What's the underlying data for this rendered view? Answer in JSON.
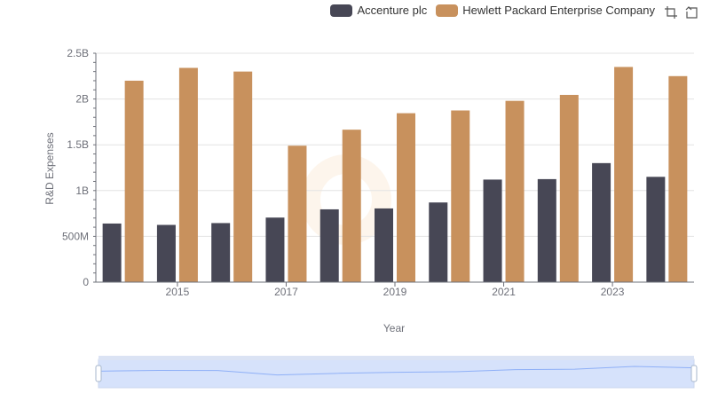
{
  "colors": {
    "accenture": "#474755",
    "hpe": "#c8915d",
    "grid": "#e3e3e3",
    "axis_text": "#6e7079",
    "slider_fill": "#d6e2fb",
    "slider_border": "#c9d5ec",
    "slider_line": "#8fb0f7"
  },
  "legend": {
    "items": [
      {
        "label": "Accenture plc",
        "color": "#474755"
      },
      {
        "label": "Hewlett Packard Enterprise Company",
        "color": "#c8915d"
      }
    ]
  },
  "toolbox": {
    "icons": [
      "zoom-icon",
      "restore-icon"
    ]
  },
  "chart_data": {
    "type": "bar",
    "title": "",
    "xlabel": "Year",
    "ylabel": "R&D Expenses",
    "categories": [
      "2014",
      "2015",
      "2016",
      "2017",
      "2018",
      "2019",
      "2020",
      "2021",
      "2022",
      "2023",
      "2024"
    ],
    "x_tick_labels": [
      "2015",
      "2017",
      "2019",
      "2021",
      "2023"
    ],
    "y_ticks": [
      0,
      500000000,
      1000000000,
      1500000000,
      2000000000,
      2500000000
    ],
    "y_tick_labels": [
      "0",
      "500M",
      "1B",
      "1.5B",
      "2B",
      "2.5B"
    ],
    "ylim": [
      0,
      2500000000
    ],
    "grid": true,
    "legend_position": "top-right",
    "series": [
      {
        "name": "Accenture plc",
        "values": [
          640000000,
          625000000,
          645000000,
          705000000,
          795000000,
          805000000,
          870000000,
          1120000000,
          1125000000,
          1300000000,
          1150000000
        ]
      },
      {
        "name": "Hewlett Packard Enterprise Company",
        "values": [
          2200000000,
          2340000000,
          2300000000,
          1490000000,
          1665000000,
          1845000000,
          1875000000,
          1980000000,
          2045000000,
          2350000000,
          2250000000
        ]
      }
    ]
  }
}
